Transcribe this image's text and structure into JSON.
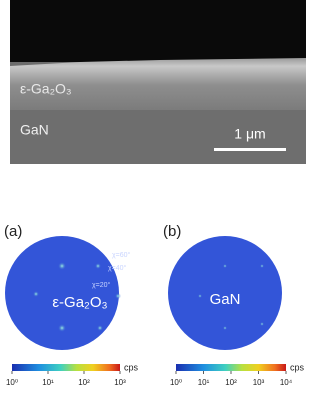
{
  "sem": {
    "layer_top": "ε-Ga₂O₃",
    "layer_bottom": "GaN",
    "scale_bar": "1 μm"
  },
  "panels": [
    {
      "label": "(a)",
      "material": "ε-Ga₂O₃",
      "chi_labels": [
        "χ=60°",
        "χ=40°",
        "χ=20°"
      ],
      "colorbar": {
        "ticks": [
          "10⁰",
          "10¹",
          "10²",
          "10³"
        ],
        "unit": "cps"
      }
    },
    {
      "label": "(b)",
      "material": "GaN",
      "colorbar": {
        "ticks": [
          "10⁰",
          "10¹",
          "10²",
          "10³",
          "10⁴"
        ],
        "unit": "cps"
      }
    }
  ]
}
